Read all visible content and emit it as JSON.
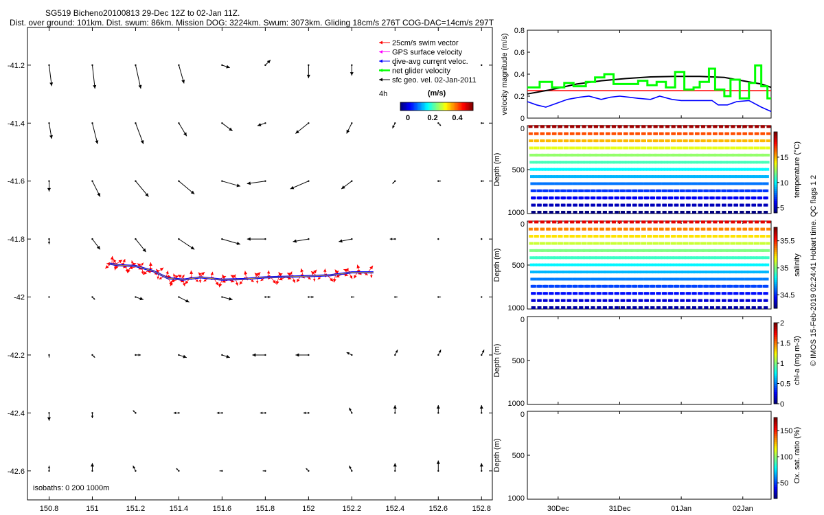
{
  "header": {
    "line1": "SG519 Bicheno20100813 29-Dec 12Z to 02-Jan 11Z.",
    "line2": "Dist. over ground: 101km. Dist. swum: 86km. Mission DOG: 3224km. Swum: 3073km. Gliding 18cm/s 276T COG-DAC=14cm/s 297T"
  },
  "footer_text": "© IMOS 15-Feb-2019 02:24:41 Hobart time. QC flags 1  2",
  "colors": {
    "swim": "#ff0000",
    "gps": "#ff00ff",
    "dac": "#0000ff",
    "net": "#00ff00",
    "sfc": "#000000",
    "track": "#ff0000"
  },
  "chart_data": [
    {
      "type": "scatter",
      "id": "map",
      "title": "",
      "xlim": [
        150.7,
        152.85
      ],
      "ylim": [
        -42.7,
        -41.07
      ],
      "x_ticks": [
        150.8,
        151,
        151.2,
        151.4,
        151.6,
        151.8,
        152,
        152.2,
        152.4,
        152.6,
        152.8
      ],
      "x_tick_labels": [
        "150.8",
        "151",
        "151.2",
        "151.4",
        "151.6",
        "151.8",
        "152",
        "152.2",
        "152.4",
        "152.6",
        "152.8"
      ],
      "y_ticks": [
        -41.2,
        -41.4,
        -41.6,
        -41.8,
        -42,
        -42.2,
        -42.4,
        -42.6
      ],
      "y_tick_labels": [
        "-41.2",
        "-41.4",
        "-41.6",
        "-41.8",
        "-42",
        "-42.2",
        "-42.4",
        "-42.6"
      ],
      "legend": {
        "placement": "top-right",
        "entries": [
          {
            "label": "25cm/s swim vector",
            "key": "swim"
          },
          {
            "label": "GPS surface velocity",
            "key": "gps"
          },
          {
            "label": "dive-avg current veloc.",
            "key": "dac"
          },
          {
            "label": "net glider velocity",
            "key": "net"
          },
          {
            "label": "sfc geo. vel. 02-Jan-2011",
            "key": "sfc"
          }
        ],
        "time_label": "4h",
        "colorbar_unit": "(m/s)",
        "colorbar_ticks": [
          "0",
          "0.2",
          "0.4"
        ]
      },
      "isobaths_label": "isobaths: 0   200  1000m",
      "current_grid": {
        "lon": [
          150.8,
          151,
          151.2,
          151.4,
          151.6,
          151.8,
          152,
          152.2,
          152.4,
          152.6,
          152.8
        ],
        "lat": [
          -41.2,
          -41.4,
          -41.6,
          -41.8,
          -42,
          -42.2,
          -42.4,
          -42.6
        ],
        "u": [
          [
            0.01,
            0.01,
            0.02,
            0.02,
            0.03,
            0.02,
            0,
            0,
            0,
            0,
            0
          ],
          [
            0.01,
            0.02,
            0.03,
            0.03,
            0.04,
            -0.03,
            -0.05,
            -0.02,
            -0.01,
            0.01,
            0.01
          ],
          [
            0,
            0.03,
            0.05,
            0.06,
            0.07,
            -0.07,
            -0.07,
            -0.04,
            -0.01,
            0.01,
            0.01
          ],
          [
            0,
            0.03,
            0.04,
            0.06,
            0.07,
            -0.07,
            -0.06,
            -0.05,
            -0.02,
            0,
            0
          ],
          [
            0,
            0.01,
            0.03,
            0.04,
            0.04,
            0.02,
            0.02,
            0.01,
            0.01,
            0.01,
            0
          ],
          [
            0,
            0.01,
            0.02,
            0.03,
            0.03,
            -0.05,
            -0.05,
            -0.02,
            0.01,
            0.01,
            0.01
          ],
          [
            0,
            0,
            -0.01,
            -0.02,
            -0.02,
            -0.02,
            -0.02,
            -0.01,
            0,
            0,
            0
          ],
          [
            0,
            0,
            -0.01,
            -0.01,
            -0.01,
            -0.01,
            -0.01,
            -0.01,
            0,
            0,
            0
          ]
        ],
        "v": [
          [
            -0.08,
            -0.09,
            -0.09,
            -0.07,
            -0.01,
            0.02,
            -0.05,
            -0.04,
            0,
            0,
            0
          ],
          [
            -0.06,
            -0.08,
            -0.08,
            -0.05,
            -0.03,
            -0.01,
            -0.04,
            -0.04,
            -0.02,
            -0.01,
            0
          ],
          [
            -0.04,
            -0.06,
            -0.06,
            -0.05,
            -0.02,
            -0.01,
            -0.03,
            -0.03,
            -0.01,
            0,
            0
          ],
          [
            -0.02,
            -0.04,
            -0.05,
            -0.04,
            -0.02,
            0,
            -0.01,
            -0.01,
            0,
            0,
            0
          ],
          [
            0,
            -0.01,
            -0.01,
            -0.02,
            -0.01,
            0,
            0,
            0,
            0,
            0,
            0
          ],
          [
            -0.01,
            -0.01,
            0,
            -0.01,
            -0.01,
            0,
            0,
            0.01,
            0.02,
            0.02,
            0.02
          ],
          [
            -0.03,
            -0.02,
            0.01,
            0,
            0,
            0,
            0,
            0.02,
            0.03,
            0.03,
            0.03
          ],
          [
            0.02,
            0.03,
            0.02,
            0.01,
            0,
            0,
            0.01,
            0.02,
            0.03,
            0.04,
            0.03
          ]
        ]
      },
      "track": {
        "lon": [
          151.08,
          151.12,
          151.2,
          151.28,
          151.35,
          151.42,
          151.5,
          151.6,
          151.7,
          151.8,
          151.9,
          152.0,
          152.1,
          152.2,
          152.3
        ],
        "lat": [
          -41.885,
          -41.89,
          -41.893,
          -41.91,
          -41.935,
          -41.94,
          -41.932,
          -41.94,
          -41.938,
          -41.932,
          -41.93,
          -41.928,
          -41.925,
          -41.915,
          -41.915
        ]
      }
    },
    {
      "type": "line",
      "id": "velocity",
      "ylabel": "velocity magnitude (m/s)",
      "ylim": [
        0,
        0.8
      ],
      "y_ticks": [
        "0",
        "0.2",
        "0.4",
        "0.6",
        "0.8"
      ],
      "series": [
        {
          "key": "swim",
          "values": [
            [
              29.5,
              0.25
            ],
            [
              33.46,
              0.25
            ]
          ]
        },
        {
          "key": "sfc",
          "values": [
            [
              29.5,
              0.22
            ],
            [
              29.9,
              0.26
            ],
            [
              30.3,
              0.31
            ],
            [
              30.7,
              0.34
            ],
            [
              31.1,
              0.36
            ],
            [
              31.5,
              0.375
            ],
            [
              31.9,
              0.38
            ],
            [
              32.3,
              0.38
            ],
            [
              32.7,
              0.37
            ],
            [
              33.0,
              0.34
            ],
            [
              33.3,
              0.31
            ],
            [
              33.46,
              0.28
            ]
          ]
        },
        {
          "key": "dac",
          "values": [
            [
              29.5,
              0.15
            ],
            [
              29.65,
              0.12
            ],
            [
              29.8,
              0.1
            ],
            [
              30.0,
              0.14
            ],
            [
              30.15,
              0.17
            ],
            [
              30.35,
              0.19
            ],
            [
              30.5,
              0.2
            ],
            [
              30.7,
              0.17
            ],
            [
              30.85,
              0.19
            ],
            [
              31.0,
              0.2
            ],
            [
              31.15,
              0.19
            ],
            [
              31.3,
              0.18
            ],
            [
              31.5,
              0.17
            ],
            [
              31.65,
              0.2
            ],
            [
              31.85,
              0.17
            ],
            [
              32.0,
              0.16
            ],
            [
              32.3,
              0.16
            ],
            [
              32.5,
              0.16
            ],
            [
              32.6,
              0.12
            ],
            [
              32.75,
              0.12
            ],
            [
              32.9,
              0.15
            ],
            [
              33.1,
              0.16
            ],
            [
              33.3,
              0.1
            ],
            [
              33.46,
              0.06
            ]
          ]
        },
        {
          "key": "net",
          "step": true,
          "values": [
            [
              29.5,
              0.28
            ],
            [
              29.7,
              0.33
            ],
            [
              29.9,
              0.28
            ],
            [
              30.1,
              0.32
            ],
            [
              30.25,
              0.29
            ],
            [
              30.45,
              0.33
            ],
            [
              30.6,
              0.37
            ],
            [
              30.75,
              0.4
            ],
            [
              30.9,
              0.31
            ],
            [
              31.05,
              0.31
            ],
            [
              31.3,
              0.34
            ],
            [
              31.45,
              0.3
            ],
            [
              31.6,
              0.33
            ],
            [
              31.75,
              0.28
            ],
            [
              31.9,
              0.42
            ],
            [
              32.05,
              0.26
            ],
            [
              32.2,
              0.28
            ],
            [
              32.3,
              0.33
            ],
            [
              32.45,
              0.45
            ],
            [
              32.55,
              0.26
            ],
            [
              32.7,
              0.2
            ],
            [
              32.8,
              0.35
            ],
            [
              32.95,
              0.18
            ],
            [
              33.1,
              0.32
            ],
            [
              33.2,
              0.48
            ],
            [
              33.3,
              0.29
            ],
            [
              33.4,
              0.18
            ]
          ]
        }
      ]
    },
    {
      "type": "scatter",
      "id": "temperature",
      "ylabel": "Depth (m)",
      "y_ticks": [
        "0",
        "500",
        "1000"
      ],
      "colorbar_label": "temperature (°C)",
      "colorbar_ticks": [
        "5",
        "10",
        "15"
      ],
      "colorbar_range": [
        4,
        20
      ],
      "surface_value": 19.5,
      "bottom_value": 4.0,
      "dives": 40
    },
    {
      "type": "scatter",
      "id": "salinity",
      "ylabel": "Depth (m)",
      "y_ticks": [
        "0",
        "500",
        "1000"
      ],
      "colorbar_label": "salinity",
      "colorbar_ticks": [
        "34.5",
        "35",
        "35.5"
      ],
      "colorbar_range": [
        34.25,
        35.75
      ],
      "surface_value": 35.6,
      "bottom_value": 34.3,
      "dives": 40
    },
    {
      "type": "scatter",
      "id": "chla",
      "ylabel": "Depth (m)",
      "y_ticks": [
        "0",
        "500",
        "1000"
      ],
      "colorbar_label": "chl-a (mg m-3)",
      "colorbar_ticks": [
        "0",
        "0.5",
        "1",
        "1.5",
        "2"
      ],
      "colorbar_range": [
        0,
        2
      ]
    },
    {
      "type": "scatter",
      "id": "oxygen",
      "ylabel": "Depth (m)",
      "y_ticks": [
        "0",
        "500",
        "1000"
      ],
      "colorbar_label": "Ox. sat. ratio (%)",
      "colorbar_ticks": [
        "50",
        "100",
        "150"
      ],
      "colorbar_range": [
        20,
        175
      ]
    }
  ],
  "time_axis": {
    "xlim": [
      29.5,
      33.46
    ],
    "ticks": [
      30,
      31,
      32,
      33
    ],
    "tick_labels": [
      "30Dec",
      "31Dec",
      "01Jan",
      "02Jan"
    ]
  }
}
